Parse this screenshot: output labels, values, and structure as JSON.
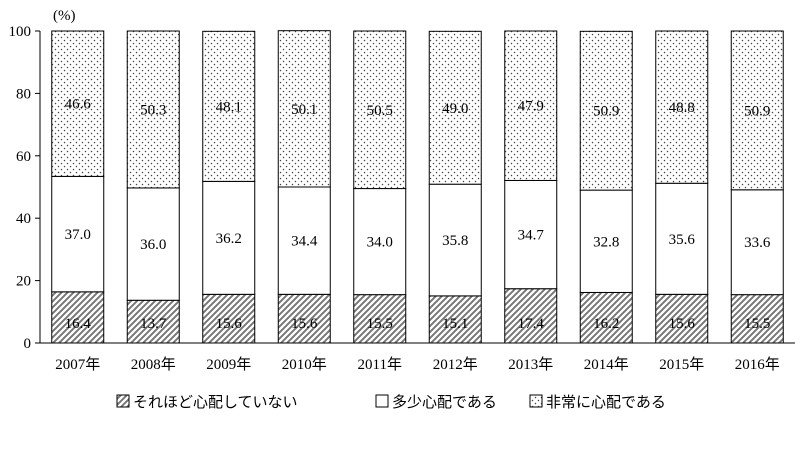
{
  "chart_data": {
    "type": "bar",
    "stacked": true,
    "unit": "(%)",
    "ylim": [
      0,
      100
    ],
    "yticks": [
      0,
      20,
      40,
      60,
      80,
      100
    ],
    "categories": [
      "2007年",
      "2008年",
      "2009年",
      "2010年",
      "2011年",
      "2012年",
      "2013年",
      "2014年",
      "2015年",
      "2016年"
    ],
    "series": [
      {
        "name": "それほど心配していない",
        "pattern": "hatch",
        "values": [
          16.4,
          13.7,
          15.6,
          15.6,
          15.5,
          15.1,
          17.4,
          16.2,
          15.6,
          15.5
        ]
      },
      {
        "name": "多少心配である",
        "pattern": "blank",
        "values": [
          37.0,
          36.0,
          36.2,
          34.4,
          34.0,
          35.8,
          34.7,
          32.8,
          35.6,
          33.6
        ]
      },
      {
        "name": "非常に心配である",
        "pattern": "dots",
        "values": [
          46.6,
          50.3,
          48.1,
          50.1,
          50.5,
          49.0,
          47.9,
          50.9,
          48.8,
          50.9
        ]
      }
    ],
    "legend_position": "bottom",
    "grid": false
  }
}
